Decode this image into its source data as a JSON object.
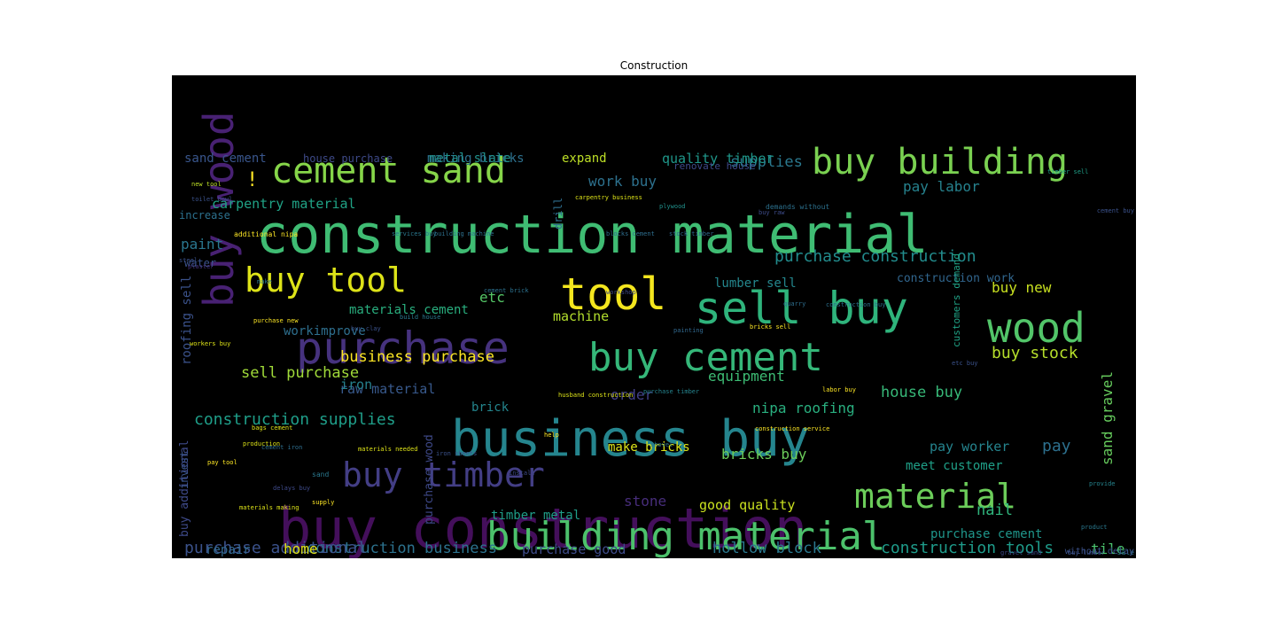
{
  "chart_data": {
    "type": "wordcloud",
    "title": "Construction",
    "background": "#000000",
    "palette": "viridis",
    "words": [
      {
        "text": "construction material",
        "size": 60,
        "color": "#3fbc73"
      },
      {
        "text": "buy construction",
        "size": 62,
        "color": "#440f5b"
      },
      {
        "text": "business buy",
        "size": 56,
        "color": "#25858e"
      },
      {
        "text": "building material",
        "size": 44,
        "color": "#4cc16b"
      },
      {
        "text": "buy cement",
        "size": 44,
        "color": "#35b779"
      },
      {
        "text": "sell buy",
        "size": 50,
        "color": "#2fb47c"
      },
      {
        "text": "purchase",
        "size": 50,
        "color": "#46327e"
      },
      {
        "text": "buy wood",
        "size": 46,
        "color": "#482173",
        "vertical": true
      },
      {
        "text": "tool",
        "size": 50,
        "color": "#f4e61e"
      },
      {
        "text": "wood",
        "size": 46,
        "color": "#52c569"
      },
      {
        "text": "buy building",
        "size": 40,
        "color": "#7ad151"
      },
      {
        "text": "cement sand",
        "size": 40,
        "color": "#86d549"
      },
      {
        "text": "buy tool",
        "size": 38,
        "color": "#dde318"
      },
      {
        "text": "buy timber",
        "size": 38,
        "color": "#433e85"
      },
      {
        "text": "material",
        "size": 38,
        "color": "#6ccd5a"
      },
      {
        "text": "purchase construction",
        "size": 18,
        "color": "#228c8d"
      },
      {
        "text": "construction supplies",
        "size": 18,
        "color": "#1f9e89"
      },
      {
        "text": "construction tools",
        "size": 18,
        "color": "#1e9b8a"
      },
      {
        "text": "construction business",
        "size": 17,
        "color": "#2c728e"
      },
      {
        "text": "purchase additional",
        "size": 18,
        "color": "#3b528b"
      },
      {
        "text": "business purchase",
        "size": 17,
        "color": "#fde725"
      },
      {
        "text": "sell purchase",
        "size": 17,
        "color": "#a0da39"
      },
      {
        "text": "hollow block",
        "size": 17,
        "color": "#2a788e"
      },
      {
        "text": "house buy",
        "size": 17,
        "color": "#37b878"
      },
      {
        "text": "buy stock",
        "size": 18,
        "color": "#b5de2b"
      },
      {
        "text": "bricks buy",
        "size": 16,
        "color": "#6ccd5a"
      },
      {
        "text": "buy new",
        "size": 16,
        "color": "#c8e020"
      },
      {
        "text": "equipment",
        "size": 16,
        "color": "#3dbc74"
      },
      {
        "text": "nipa roofing",
        "size": 16,
        "color": "#29af7f"
      },
      {
        "text": "pay labor",
        "size": 16,
        "color": "#26828e"
      },
      {
        "text": "supplies",
        "size": 17,
        "color": "#2a788e"
      },
      {
        "text": "work buy",
        "size": 16,
        "color": "#2d718e"
      },
      {
        "text": "quality timber",
        "size": 15,
        "color": "#1f988b"
      },
      {
        "text": "carpentry material",
        "size": 15,
        "color": "#20a386"
      },
      {
        "text": "sand cement",
        "size": 14,
        "color": "#39568c"
      },
      {
        "text": "making bricks",
        "size": 14,
        "color": "#2d708e"
      },
      {
        "text": "metal slate",
        "size": 14,
        "color": "#21918c"
      },
      {
        "text": "expand",
        "size": 14,
        "color": "#bddf26"
      },
      {
        "text": "house purchase",
        "size": 12,
        "color": "#3e4a89"
      },
      {
        "text": "materials cement",
        "size": 14,
        "color": "#29af7f"
      },
      {
        "text": "lumber sell",
        "size": 14,
        "color": "#24878e"
      },
      {
        "text": "construction work",
        "size": 13,
        "color": "#31668e"
      },
      {
        "text": "machine",
        "size": 15,
        "color": "#b2dd2d"
      },
      {
        "text": "etc",
        "size": 16,
        "color": "#55c667"
      },
      {
        "text": "paint",
        "size": 16,
        "color": "#2a768e"
      },
      {
        "text": "water",
        "size": 12,
        "color": "#3b528b"
      },
      {
        "text": "increase",
        "size": 12,
        "color": "#2c718e"
      },
      {
        "text": "workimprove",
        "size": 14,
        "color": "#2e6f8e"
      },
      {
        "text": "raw material",
        "size": 15,
        "color": "#38598c"
      },
      {
        "text": "order",
        "size": 16,
        "color": "#424086"
      },
      {
        "text": "brick",
        "size": 14,
        "color": "#24868e"
      },
      {
        "text": "iron",
        "size": 15,
        "color": "#26818e"
      },
      {
        "text": "make bricks",
        "size": 14,
        "color": "#dde318"
      },
      {
        "text": "stone",
        "size": 16,
        "color": "#472d7b"
      },
      {
        "text": "good quality",
        "size": 15,
        "color": "#cae11f"
      },
      {
        "text": "timber metal",
        "size": 14,
        "color": "#1f9e89"
      },
      {
        "text": "pay worker",
        "size": 15,
        "color": "#25848e"
      },
      {
        "text": "meet customer",
        "size": 14,
        "color": "#1fa088"
      },
      {
        "text": "pay",
        "size": 18,
        "color": "#2d708e"
      },
      {
        "text": "nail",
        "size": 17,
        "color": "#2fb47c"
      },
      {
        "text": "purchase cement",
        "size": 14,
        "color": "#1f968b"
      },
      {
        "text": "tile",
        "size": 16,
        "color": "#4ac16d"
      },
      {
        "text": "home",
        "size": 16,
        "color": "#dfe318"
      },
      {
        "text": "repair",
        "size": 14,
        "color": "#31688e"
      },
      {
        "text": "purchase good",
        "size": 15,
        "color": "#3e4c8a"
      },
      {
        "text": "roofing sell",
        "size": 14,
        "color": "#3b528b",
        "vertical": true
      },
      {
        "text": "sand gravel",
        "size": 16,
        "color": "#66cb5d",
        "vertical": true
      },
      {
        "text": "purchase wood",
        "size": 13,
        "color": "#3e4989",
        "vertical": true
      },
      {
        "text": "buy additional",
        "size": 13,
        "color": "#3e4a89",
        "vertical": true
      },
      {
        "text": "drill",
        "size": 12,
        "color": "#2e6e8e",
        "vertical": true
      },
      {
        "text": "customers demand",
        "size": 11,
        "color": "#20a386",
        "vertical": true
      },
      {
        "text": "invest",
        "size": 12,
        "color": "#3a548c",
        "vertical": true
      },
      {
        "text": "!",
        "size": 22,
        "color": "#fde725"
      },
      {
        "text": "renovate house",
        "size": 11,
        "color": "#3e4a89"
      },
      {
        "text": "new tool",
        "size": 7,
        "color": "#bddf26"
      },
      {
        "text": "toilet bowl",
        "size": 7,
        "color": "#3b528b"
      },
      {
        "text": "carpentry business",
        "size": 7,
        "color": "#dde318"
      },
      {
        "text": "plywood",
        "size": 7,
        "color": "#21918c"
      },
      {
        "text": "demands without",
        "size": 8,
        "color": "#2c718e"
      },
      {
        "text": "timber sell",
        "size": 7,
        "color": "#1fa088"
      },
      {
        "text": "cement buy",
        "size": 7,
        "color": "#3b528b"
      },
      {
        "text": "buy raw",
        "size": 7,
        "color": "#3e4c8a"
      },
      {
        "text": "additional nipa",
        "size": 8,
        "color": "#fde725"
      },
      {
        "text": "services buy",
        "size": 7,
        "color": "#2a788e"
      },
      {
        "text": "building machine",
        "size": 7,
        "color": "#2d708e"
      },
      {
        "text": "blocks cement",
        "size": 7,
        "color": "#2e6e8e"
      },
      {
        "text": "stock timber",
        "size": 7,
        "color": "#31688e"
      },
      {
        "text": "steel",
        "size": 7,
        "color": "#3b528b"
      },
      {
        "text": "plaster",
        "size": 7,
        "color": "#46327e"
      },
      {
        "text": "make",
        "size": 7,
        "color": "#2a788e"
      },
      {
        "text": "purchase new",
        "size": 7,
        "color": "#fde725"
      },
      {
        "text": "cement brick",
        "size": 7,
        "color": "#2c718e"
      },
      {
        "text": "workshop",
        "size": 7,
        "color": "#3e4a89"
      },
      {
        "text": "workers buy",
        "size": 7,
        "color": "#dde318"
      },
      {
        "text": "painting",
        "size": 7,
        "color": "#31688e"
      },
      {
        "text": "bricks sell",
        "size": 7,
        "color": "#fde725"
      },
      {
        "text": "build house",
        "size": 7,
        "color": "#2a788e"
      },
      {
        "text": "buy clay",
        "size": 7,
        "color": "#3b528b"
      },
      {
        "text": "bags cement",
        "size": 7,
        "color": "#dde318"
      },
      {
        "text": "husband construction",
        "size": 7,
        "color": "#dde318"
      },
      {
        "text": "purchase timber",
        "size": 7,
        "color": "#25848e"
      },
      {
        "text": "labor buy",
        "size": 7,
        "color": "#fde725"
      },
      {
        "text": "construction service",
        "size": 7,
        "color": "#fde725"
      },
      {
        "text": "shovel",
        "size": 7,
        "color": "#2a788e"
      },
      {
        "text": "help",
        "size": 7,
        "color": "#fde725"
      },
      {
        "text": "production",
        "size": 7,
        "color": "#dde318"
      },
      {
        "text": "cement iron",
        "size": 7,
        "color": "#2e6e8e"
      },
      {
        "text": "materials needed",
        "size": 7,
        "color": "#dde318"
      },
      {
        "text": "materials making",
        "size": 7,
        "color": "#dde318"
      },
      {
        "text": "delays buy",
        "size": 7,
        "color": "#3e4a89"
      },
      {
        "text": "sand",
        "size": 8,
        "color": "#2a788e"
      },
      {
        "text": "pay tool",
        "size": 7,
        "color": "#fde725"
      },
      {
        "text": "supply",
        "size": 7,
        "color": "#fde725"
      },
      {
        "text": "iron sheets",
        "size": 7,
        "color": "#3b528b"
      },
      {
        "text": "install",
        "size": 7,
        "color": "#3e4a89"
      },
      {
        "text": "provide",
        "size": 7,
        "color": "#25848e"
      },
      {
        "text": "product",
        "size": 7,
        "color": "#2a788e"
      },
      {
        "text": "construction buy",
        "size": 7,
        "color": "#2c718e"
      },
      {
        "text": "quarry",
        "size": 7,
        "color": "#2e6e8e"
      },
      {
        "text": "etc buy",
        "size": 7,
        "color": "#3b528b"
      },
      {
        "text": "gravel sand",
        "size": 7,
        "color": "#3e4a89"
      },
      {
        "text": "sale",
        "size": 8,
        "color": "#2a788e"
      },
      {
        "text": "buy lumber",
        "size": 7,
        "color": "#3b528b"
      },
      {
        "text": "without delay",
        "size": 10,
        "color": "#3b528b"
      }
    ]
  }
}
